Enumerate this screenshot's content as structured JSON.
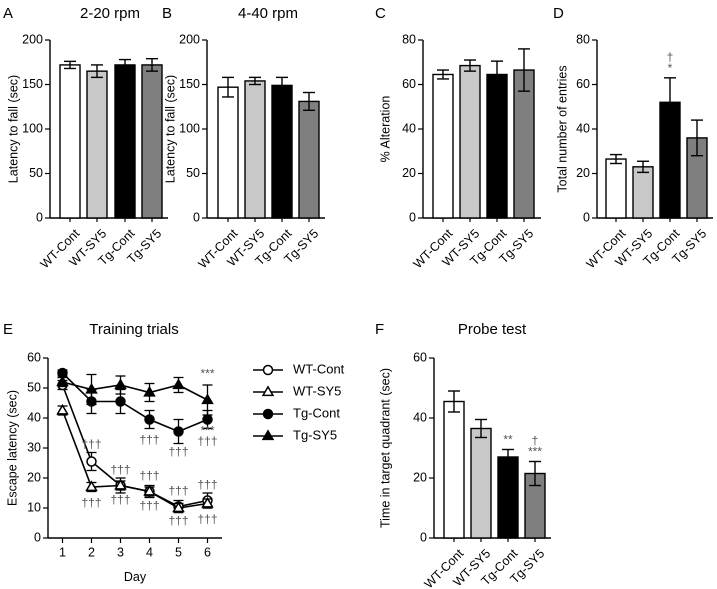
{
  "chart_data": [
    {
      "letter": "A",
      "type": "bar",
      "title": "2-20 rpm",
      "ylabel": "Latency to fall (sec)",
      "xlabel": "",
      "ylim": [
        0,
        200
      ],
      "yticks": [
        0,
        50,
        100,
        150,
        200
      ],
      "categories": [
        "WT-Cont",
        "WT-SY5",
        "Tg-Cont",
        "Tg-SY5"
      ],
      "values": [
        172,
        165,
        172,
        172
      ],
      "errors": [
        4,
        7,
        6,
        7
      ],
      "bar_colors": [
        "#ffffff",
        "#c8c8c8",
        "#000000",
        "#7f7f7f"
      ],
      "annotations": [
        [],
        [],
        [],
        []
      ]
    },
    {
      "letter": "B",
      "type": "bar",
      "title": "4-40 rpm",
      "ylabel": "Latency to fall (sec)",
      "xlabel": "",
      "ylim": [
        0,
        200
      ],
      "yticks": [
        0,
        50,
        100,
        150,
        200
      ],
      "categories": [
        "WT-Cont",
        "WT-SY5",
        "Tg-Cont",
        "Tg-SY5"
      ],
      "values": [
        147,
        154,
        149,
        131
      ],
      "errors": [
        11,
        4,
        9,
        10
      ],
      "bar_colors": [
        "#ffffff",
        "#c8c8c8",
        "#000000",
        "#7f7f7f"
      ],
      "annotations": [
        [],
        [],
        [],
        []
      ]
    },
    {
      "letter": "C",
      "type": "bar",
      "title": "",
      "ylabel": "% Alteration",
      "xlabel": "",
      "ylim": [
        0,
        80
      ],
      "yticks": [
        0,
        20,
        40,
        60,
        80
      ],
      "categories": [
        "WT-Cont",
        "WT-SY5",
        "Tg-Cont",
        "Tg-SY5"
      ],
      "values": [
        64.5,
        68.5,
        64.5,
        66.5
      ],
      "errors": [
        2,
        2.5,
        6,
        9.5
      ],
      "bar_colors": [
        "#ffffff",
        "#c8c8c8",
        "#000000",
        "#7f7f7f"
      ],
      "annotations": [
        [],
        [],
        [],
        []
      ]
    },
    {
      "letter": "D",
      "type": "bar",
      "title": "",
      "ylabel": "Total number of entries",
      "xlabel": "",
      "ylim": [
        0,
        80
      ],
      "yticks": [
        0,
        20,
        40,
        60,
        80
      ],
      "categories": [
        "WT-Cont",
        "WT-SY5",
        "Tg-Cont",
        "Tg-SY5"
      ],
      "values": [
        26.5,
        23,
        52,
        36
      ],
      "errors": [
        2,
        2.5,
        11,
        8
      ],
      "bar_colors": [
        "#ffffff",
        "#c8c8c8",
        "#000000",
        "#7f7f7f"
      ],
      "annotations": [
        [],
        [],
        [
          "*",
          "†"
        ],
        []
      ]
    },
    {
      "letter": "E",
      "type": "line",
      "title": "Training trials",
      "ylabel": "Escape latency (sec)",
      "xlabel": "Day",
      "ylim": [
        0,
        60
      ],
      "yticks": [
        0,
        10,
        20,
        30,
        40,
        50,
        60
      ],
      "x": [
        1,
        2,
        3,
        4,
        5,
        6
      ],
      "xlim": [
        0.5,
        6.5
      ],
      "series": [
        {
          "name": "WT-Cont",
          "marker": "circle-open",
          "values": [
            51,
            25.5,
            17.5,
            15.5,
            10.5,
            12.5
          ],
          "errors": [
            1.5,
            3,
            2.5,
            2,
            2,
            2.5
          ]
        },
        {
          "name": "WT-SY5",
          "marker": "triangle-open",
          "values": [
            42.5,
            17,
            17.5,
            15.5,
            10,
            11.5
          ],
          "errors": [
            1.5,
            1.5,
            1.5,
            1.5,
            1.5,
            1.5
          ]
        },
        {
          "name": "Tg-Cont",
          "marker": "circle-filled",
          "values": [
            55,
            45.5,
            45.5,
            39.5,
            35.5,
            39.5
          ],
          "errors": [
            1,
            4,
            4,
            3,
            4,
            3
          ]
        },
        {
          "name": "Tg-SY5",
          "marker": "triangle-filled",
          "values": [
            52,
            49.5,
            51,
            48.5,
            51,
            46
          ],
          "errors": [
            1.5,
            5,
            3,
            3,
            2.5,
            5
          ]
        }
      ],
      "annotations": [
        {
          "x": 6,
          "y": 54.5,
          "text": "***"
        },
        {
          "x": 2,
          "y": 31,
          "text": "†††"
        },
        {
          "x": 3,
          "y": 22.5,
          "text": "†††"
        },
        {
          "x": 4,
          "y": 20.5,
          "text": "†††"
        },
        {
          "x": 5,
          "y": 15.5,
          "text": "†††"
        },
        {
          "x": 6,
          "y": 17.5,
          "text": "†††"
        },
        {
          "x": 2,
          "y": 11.5,
          "text": "†††"
        },
        {
          "x": 3,
          "y": 12.5,
          "text": "†††"
        },
        {
          "x": 4,
          "y": 10.5,
          "text": "†††"
        },
        {
          "x": 5,
          "y": 5.5,
          "text": "†††"
        },
        {
          "x": 6,
          "y": 6,
          "text": "†††"
        },
        {
          "x": 4,
          "y": 32.5,
          "text": "†††"
        },
        {
          "x": 5,
          "y": 28.5,
          "text": "†††"
        },
        {
          "x": 6,
          "y": 32,
          "text": "†††"
        },
        {
          "x": 6,
          "y": 35.5,
          "text": "***"
        }
      ]
    },
    {
      "letter": "F",
      "type": "bar",
      "title": "Probe test",
      "ylabel": "Time in target quadrant (sec)",
      "xlabel": "",
      "ylim": [
        0,
        60
      ],
      "yticks": [
        0,
        20,
        40,
        60
      ],
      "categories": [
        "WT-Cont",
        "WT-SY5",
        "Tg-Cont",
        "Tg-SY5"
      ],
      "values": [
        45.5,
        36.5,
        27,
        21.5
      ],
      "errors": [
        3.5,
        3,
        2.5,
        4
      ],
      "bar_colors": [
        "#ffffff",
        "#c8c8c8",
        "#000000",
        "#7f7f7f"
      ],
      "annotations": [
        [],
        [],
        [
          "**"
        ],
        [
          "***",
          "†"
        ]
      ]
    }
  ]
}
